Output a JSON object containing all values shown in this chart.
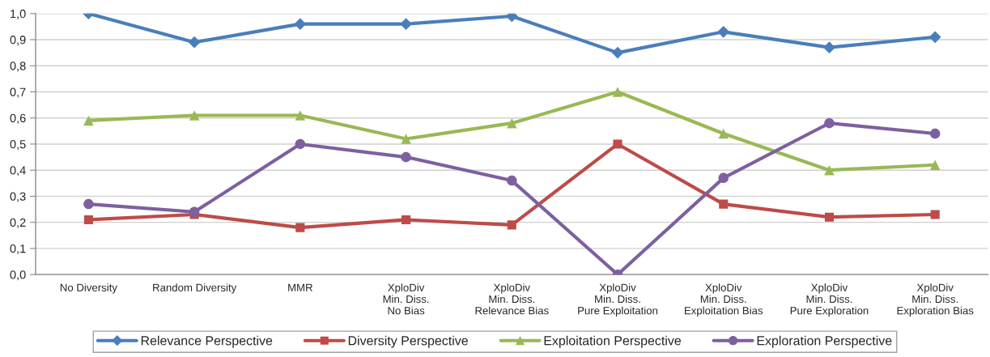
{
  "chart_data": {
    "type": "line",
    "categories": [
      "No Diversity",
      "Random Diversity",
      "MMR",
      "XploDiv\nMin. Diss.\nNo Bias",
      "XploDiv\nMin. Diss.\nRelevance Bias",
      "XploDiv\nMin. Diss.\nPure Exploitation",
      "XploDiv\nMin. Diss.\nExploitation Bias",
      "XploDiv\nMin. Diss.\nPure Exploration",
      "XploDiv\nMin. Diss.\nExploration Bias"
    ],
    "series": [
      {
        "name": "Relevance Perspective",
        "color": "#4a7ebb",
        "marker": "diamond",
        "values": [
          1.0,
          0.89,
          0.96,
          0.96,
          0.99,
          0.85,
          0.93,
          0.87,
          0.91
        ]
      },
      {
        "name": "Diversity Perspective",
        "color": "#be4b48",
        "marker": "square",
        "values": [
          0.21,
          0.23,
          0.18,
          0.21,
          0.19,
          0.5,
          0.27,
          0.22,
          0.23
        ]
      },
      {
        "name": "Exploitation Perspective",
        "color": "#98b954",
        "marker": "triangle",
        "values": [
          0.59,
          0.61,
          0.61,
          0.52,
          0.58,
          0.7,
          0.54,
          0.4,
          0.42
        ]
      },
      {
        "name": "Exploration Perspective",
        "color": "#7d60a0",
        "marker": "circle",
        "values": [
          0.27,
          0.24,
          0.5,
          0.45,
          0.36,
          0.0,
          0.37,
          0.58,
          0.54
        ]
      }
    ],
    "ylim": [
      0,
      1
    ],
    "yticks": [
      {
        "value": 0,
        "label": "0,0"
      },
      {
        "value": 0.1,
        "label": "0,1"
      },
      {
        "value": 0.2,
        "label": "0,2"
      },
      {
        "value": 0.3,
        "label": "0,3"
      },
      {
        "value": 0.4,
        "label": "0,4"
      },
      {
        "value": 0.5,
        "label": "0,5"
      },
      {
        "value": 0.6,
        "label": "0,6"
      },
      {
        "value": 0.7,
        "label": "0,7"
      },
      {
        "value": 0.8,
        "label": "0,8"
      },
      {
        "value": 0.9,
        "label": "0,9"
      },
      {
        "value": 1,
        "label": "1,0"
      }
    ],
    "grid": "y",
    "legend": "bottom",
    "line_style": "solid"
  }
}
